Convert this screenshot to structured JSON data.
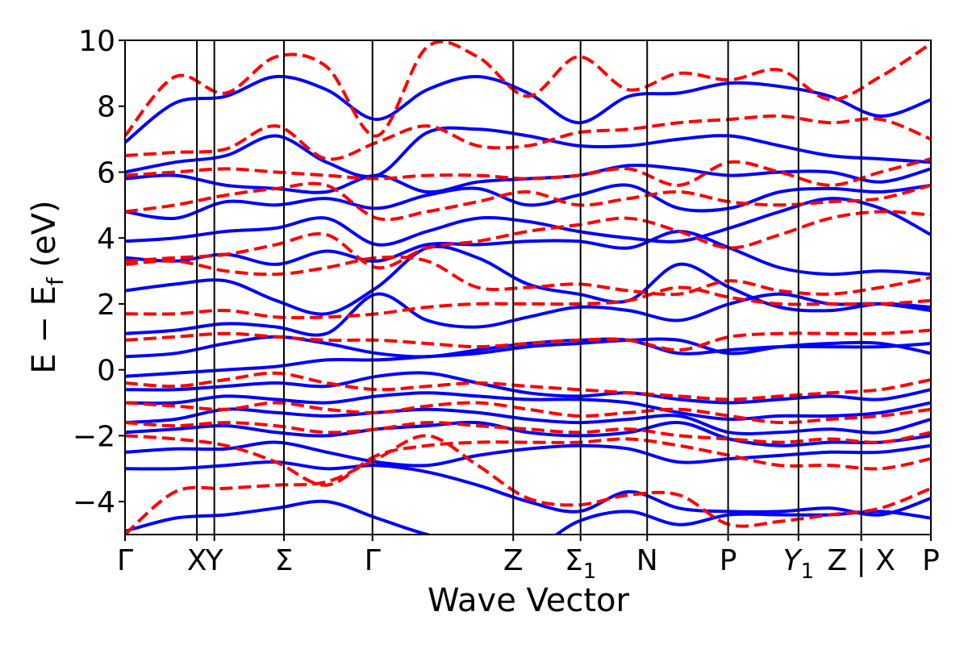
{
  "chart_data": {
    "type": "line",
    "xlabel": "Wave Vector",
    "ylabel": "E − E",
    "ylabel_sub": "f",
    "ylabel_unit": " (eV)",
    "ylim": [
      -5,
      10
    ],
    "yticks": [
      -4,
      -2,
      0,
      2,
      4,
      6,
      8,
      10
    ],
    "ytick_labels": [
      "−4",
      "−2",
      "0",
      "2",
      "4",
      "6",
      "8",
      "10"
    ],
    "x_range": [
      0,
      9.2
    ],
    "high_symmetry_points": [
      {
        "x": 0.0,
        "label": "Γ",
        "sub": ""
      },
      {
        "x": 0.95,
        "label": "X",
        "sub": ""
      },
      {
        "x": 1.18,
        "label": "Y",
        "sub": ""
      },
      {
        "x": 2.1,
        "label": "Σ",
        "sub": ""
      },
      {
        "x": 3.27,
        "label": "Γ",
        "sub": ""
      },
      {
        "x": 5.13,
        "label": "Z",
        "sub": ""
      },
      {
        "x": 6.02,
        "label": "Σ",
        "sub": "1"
      },
      {
        "x": 6.9,
        "label": "N",
        "sub": ""
      },
      {
        "x": 7.97,
        "label": "P",
        "sub": ""
      },
      {
        "x": 8.9,
        "label": "Y",
        "sub": "1"
      },
      {
        "x": 9.73,
        "label": "Z | X",
        "sub": ""
      },
      {
        "x": 10.65,
        "label": "P",
        "sub": ""
      }
    ],
    "grid": false,
    "legend": "none",
    "series": [
      {
        "style": "solid",
        "color": "#0000ff",
        "bands": [
          [
            -4.9,
            -4.5,
            -4.4,
            -4.2,
            -4.0,
            -4.5,
            -5.0,
            -5.3,
            -5.5,
            -4.6,
            -4.3,
            -4.7,
            -4.4,
            -4.4,
            -4.4,
            -4.3,
            -4.5
          ],
          [
            -3.0,
            -3.0,
            -2.9,
            -2.8,
            -3.0,
            -2.9,
            -3.1,
            -3.5,
            -4.0,
            -4.3,
            -3.7,
            -4.2,
            -4.3,
            -4.3,
            -4.2,
            -4.4,
            -3.9
          ],
          [
            -2.5,
            -2.4,
            -2.4,
            -2.2,
            -2.5,
            -2.8,
            -2.9,
            -2.6,
            -2.4,
            -2.3,
            -2.4,
            -2.8,
            -2.7,
            -2.6,
            -2.5,
            -2.5,
            -2.3
          ],
          [
            -1.9,
            -1.8,
            -1.7,
            -1.9,
            -2.0,
            -1.8,
            -1.7,
            -1.6,
            -1.9,
            -2.0,
            -1.9,
            -1.6,
            -2.1,
            -2.3,
            -2.2,
            -2.2,
            -2.0
          ],
          [
            -1.6,
            -1.5,
            -1.2,
            -1.3,
            -1.4,
            -1.3,
            -1.2,
            -1.3,
            -1.5,
            -1.6,
            -1.5,
            -1.4,
            -1.9,
            -1.9,
            -1.8,
            -1.9,
            -1.5
          ],
          [
            -1.0,
            -1.0,
            -0.8,
            -0.9,
            -1.0,
            -0.8,
            -0.7,
            -0.8,
            -0.9,
            -0.9,
            -1.0,
            -1.3,
            -1.5,
            -1.4,
            -1.4,
            -1.3,
            -1.0
          ],
          [
            -0.6,
            -0.6,
            -0.5,
            -0.4,
            -0.5,
            -0.2,
            -0.1,
            -0.4,
            -0.7,
            -0.8,
            -0.7,
            -0.9,
            -1.0,
            -0.9,
            -0.8,
            -0.9,
            -0.6
          ],
          [
            -0.2,
            -0.1,
            0.0,
            0.1,
            0.3,
            0.3,
            0.4,
            0.5,
            0.7,
            0.8,
            0.9,
            0.9,
            0.5,
            0.7,
            0.8,
            0.8,
            0.5
          ],
          [
            0.4,
            0.5,
            0.8,
            1.0,
            0.8,
            0.5,
            0.4,
            0.6,
            0.8,
            0.9,
            0.9,
            0.5,
            0.6,
            0.7,
            0.7,
            0.7,
            0.8
          ],
          [
            1.1,
            1.2,
            1.4,
            1.3,
            1.1,
            2.3,
            1.5,
            1.3,
            1.6,
            1.9,
            1.8,
            1.5,
            2.0,
            2.3,
            2.0,
            2.0,
            1.8
          ],
          [
            2.4,
            2.6,
            2.7,
            2.1,
            1.7,
            2.5,
            3.7,
            3.4,
            2.6,
            2.3,
            2.1,
            3.2,
            2.5,
            1.9,
            1.8,
            2.0,
            1.9
          ],
          [
            3.4,
            3.3,
            3.5,
            3.2,
            3.6,
            3.3,
            3.8,
            3.8,
            3.9,
            3.9,
            3.7,
            4.2,
            3.7,
            3.1,
            2.9,
            3.0,
            2.9
          ],
          [
            3.9,
            4.0,
            4.2,
            4.3,
            4.6,
            3.8,
            4.2,
            4.6,
            4.5,
            4.2,
            4.0,
            3.9,
            4.3,
            4.8,
            5.2,
            4.9,
            4.1
          ],
          [
            4.8,
            4.6,
            5.1,
            5.0,
            5.2,
            4.9,
            5.3,
            5.5,
            5.0,
            5.3,
            5.6,
            4.9,
            4.9,
            5.4,
            5.5,
            5.4,
            5.6
          ],
          [
            5.8,
            5.9,
            5.6,
            5.5,
            5.4,
            5.9,
            5.4,
            5.7,
            5.8,
            5.9,
            6.2,
            6.1,
            5.9,
            6.0,
            6.0,
            5.7,
            6.1
          ],
          [
            6.0,
            6.3,
            6.5,
            7.1,
            6.3,
            5.9,
            7.2,
            7.3,
            7.1,
            6.8,
            6.8,
            7.0,
            7.1,
            6.8,
            6.5,
            6.4,
            6.3
          ],
          [
            6.9,
            8.1,
            8.3,
            8.9,
            8.5,
            7.6,
            8.5,
            8.9,
            8.4,
            7.5,
            8.3,
            8.4,
            8.7,
            8.6,
            8.3,
            7.7,
            8.2
          ]
        ]
      },
      {
        "style": "dashed",
        "color": "#ff0000",
        "bands": [
          [
            -5.0,
            -3.7,
            -3.6,
            -3.5,
            -3.4,
            -2.7,
            -2.0,
            -2.9,
            -3.9,
            -4.1,
            -3.8,
            -3.8,
            -4.7,
            -4.6,
            -4.4,
            -4.2,
            -3.6
          ],
          [
            -2.0,
            -2.1,
            -2.3,
            -2.8,
            -3.5,
            -2.6,
            -2.3,
            -2.2,
            -2.2,
            -2.2,
            -2.1,
            -2.3,
            -2.6,
            -2.9,
            -2.9,
            -3.0,
            -2.7
          ],
          [
            -1.6,
            -1.7,
            -1.6,
            -1.7,
            -1.9,
            -1.8,
            -1.6,
            -1.7,
            -1.8,
            -1.9,
            -1.8,
            -2.0,
            -2.1,
            -2.2,
            -2.1,
            -2.2,
            -1.9
          ],
          [
            -1.0,
            -1.1,
            -1.2,
            -1.0,
            -1.2,
            -1.3,
            -1.1,
            -1.0,
            -1.2,
            -1.4,
            -1.3,
            -1.2,
            -1.4,
            -1.6,
            -1.5,
            -1.4,
            -1.2
          ],
          [
            -0.4,
            -0.5,
            -0.3,
            -0.1,
            -0.4,
            -0.6,
            -0.5,
            -0.4,
            -0.5,
            -0.6,
            -0.7,
            -0.8,
            -0.9,
            -0.8,
            -0.7,
            -0.6,
            -0.3
          ],
          [
            0.9,
            1.0,
            1.1,
            1.0,
            0.9,
            0.9,
            0.8,
            0.7,
            0.8,
            0.9,
            0.9,
            0.6,
            1.0,
            1.1,
            1.1,
            1.1,
            1.2
          ],
          [
            1.7,
            1.7,
            1.8,
            1.6,
            1.6,
            1.7,
            1.9,
            2.0,
            2.0,
            2.0,
            2.1,
            2.5,
            2.2,
            2.0,
            2.0,
            2.0,
            2.1
          ],
          [
            3.2,
            3.3,
            3.0,
            2.9,
            3.1,
            3.4,
            3.3,
            2.5,
            2.5,
            2.6,
            2.4,
            2.3,
            2.7,
            2.4,
            2.3,
            2.5,
            2.8
          ],
          [
            3.3,
            3.4,
            3.5,
            3.8,
            4.1,
            3.1,
            3.7,
            3.9,
            4.2,
            4.4,
            4.6,
            4.2,
            3.7,
            4.1,
            4.6,
            4.8,
            4.7
          ],
          [
            4.8,
            5.0,
            5.3,
            5.5,
            5.6,
            4.6,
            4.8,
            5.1,
            5.4,
            5.0,
            5.2,
            5.4,
            5.1,
            5.0,
            5.1,
            5.2,
            5.6
          ],
          [
            5.9,
            6.0,
            6.1,
            6.0,
            5.9,
            5.8,
            5.9,
            5.9,
            5.8,
            5.9,
            6.1,
            5.6,
            6.3,
            6.0,
            5.6,
            6.0,
            6.4
          ],
          [
            6.5,
            6.6,
            6.7,
            7.4,
            6.4,
            6.9,
            7.4,
            6.8,
            6.8,
            7.2,
            7.3,
            7.5,
            7.6,
            7.7,
            7.5,
            7.6,
            7.0
          ],
          [
            7.1,
            8.9,
            8.4,
            9.5,
            9.2,
            7.1,
            9.8,
            9.5,
            8.3,
            9.5,
            8.5,
            9.0,
            8.8,
            9.1,
            8.2,
            8.9,
            9.9
          ]
        ]
      }
    ]
  }
}
